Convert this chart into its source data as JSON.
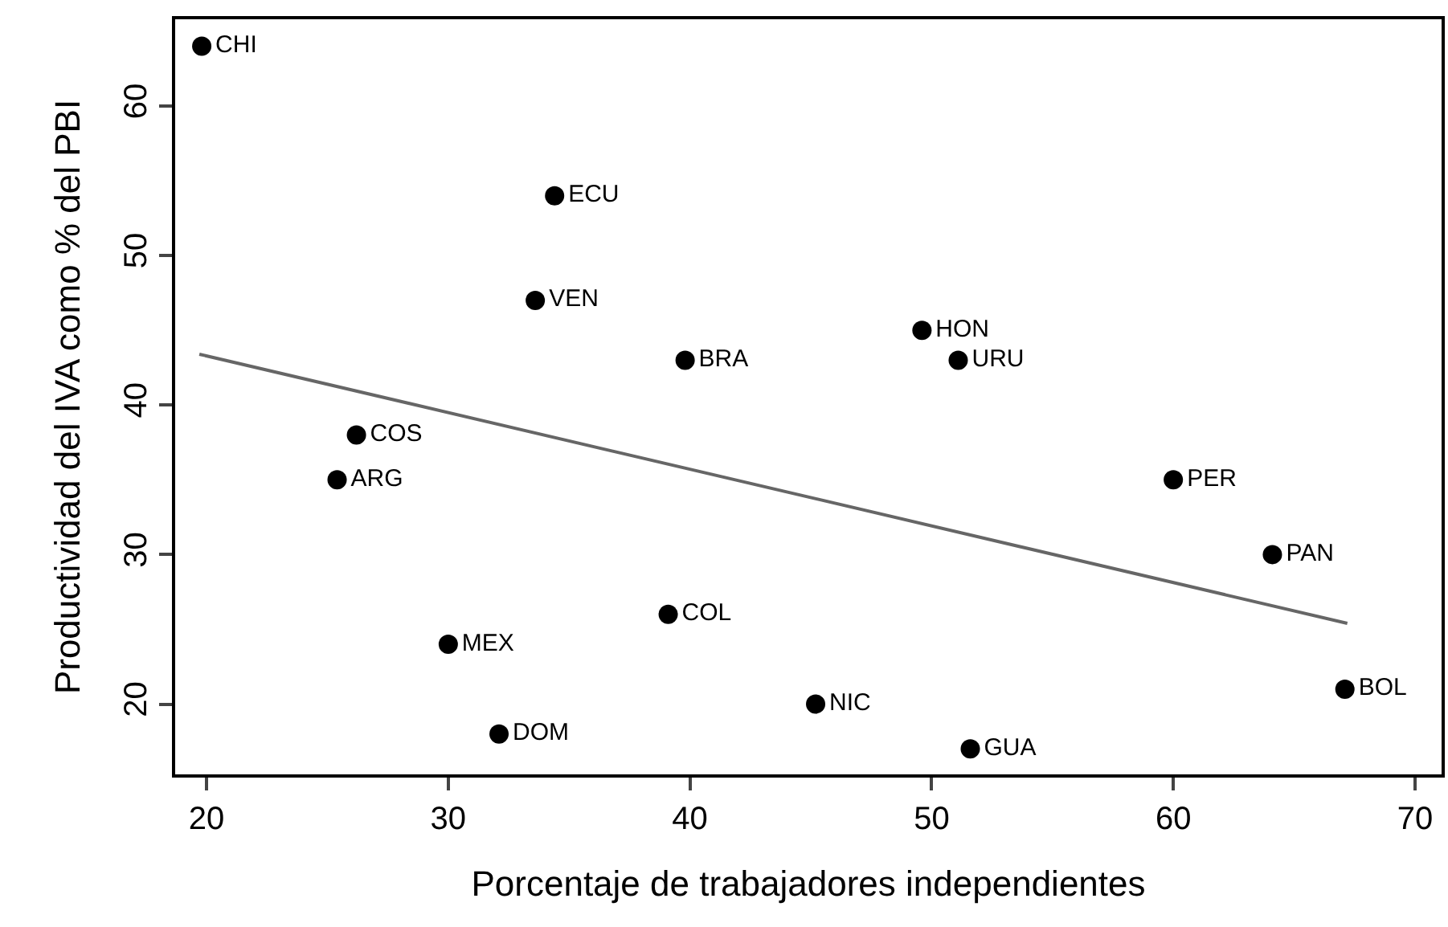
{
  "chart_data": {
    "type": "scatter",
    "xlabel": "Porcentaje de trabajadores independientes",
    "ylabel": "Productividad del IVA como % del PBI",
    "xlim": [
      18.7,
      71.1
    ],
    "ylim": [
      15.3,
      65.8
    ],
    "xticks": [
      20,
      30,
      40,
      50,
      60,
      70
    ],
    "yticks": [
      20,
      30,
      40,
      50,
      60
    ],
    "grid": false,
    "marker": "circle",
    "series": [
      {
        "type": "scatter",
        "color": "#000000",
        "x": [
          19.8,
          34.4,
          33.6,
          39.8,
          49.6,
          51.1,
          26.2,
          25.4,
          60,
          64.1,
          39.1,
          30,
          32.1,
          45.2,
          51.6,
          67.1
        ],
        "values": [
          64,
          54,
          47,
          43,
          45,
          43,
          38,
          35,
          35,
          30,
          26,
          24,
          18,
          20,
          17,
          21
        ],
        "value_labels": [
          "CHI",
          "ECU",
          "VEN",
          "BRA",
          "HON",
          "URU",
          "COS",
          "ARG",
          "PER",
          "PAN",
          "COL",
          "MEX",
          "DOM",
          "NIC",
          "GUA",
          "BOL"
        ]
      },
      {
        "type": "line",
        "color": "#666666",
        "x": [
          19.7,
          67.2
        ],
        "values": [
          43.4,
          25.4
        ],
        "line_style": "solid",
        "marker": "none"
      }
    ]
  }
}
